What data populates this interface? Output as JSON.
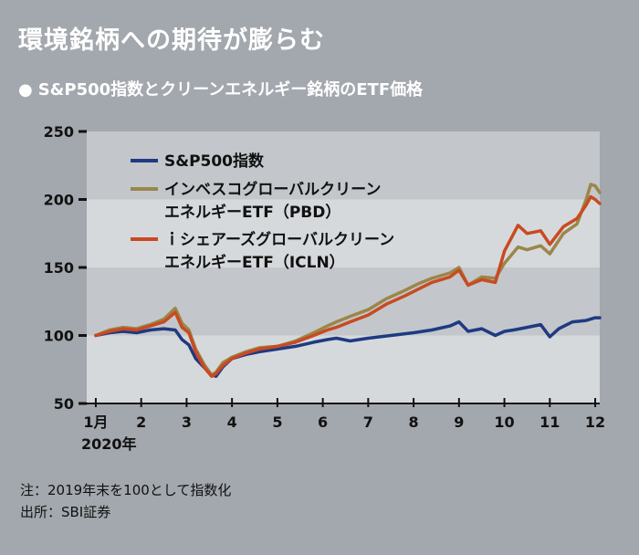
{
  "header": {
    "title": "環境銘柄への期待が膨らむ",
    "subtitle_bullet": "●",
    "subtitle": "S&P500指数とクリーンエネルギー銘柄のETF価格"
  },
  "notes": {
    "note1": "注：2019年末を100として指数化",
    "note2": "出所：SBI証券"
  },
  "chart_data": {
    "type": "line",
    "ylim": [
      50,
      250
    ],
    "yticks": [
      50,
      100,
      150,
      200,
      250
    ],
    "xlim": [
      0.8,
      12.1
    ],
    "xticks": [
      {
        "label": "1月",
        "value": 1
      },
      {
        "label": "2",
        "value": 2
      },
      {
        "label": "3",
        "value": 3
      },
      {
        "label": "4",
        "value": 4
      },
      {
        "label": "5",
        "value": 5
      },
      {
        "label": "6",
        "value": 6
      },
      {
        "label": "7",
        "value": 7
      },
      {
        "label": "8",
        "value": 8
      },
      {
        "label": "9",
        "value": 9
      },
      {
        "label": "10",
        "value": 10
      },
      {
        "label": "11",
        "value": 11
      },
      {
        "label": "12",
        "value": 12
      }
    ],
    "x_sub_label": "2020年",
    "bands": [
      [
        50,
        100,
        "light"
      ],
      [
        100,
        150,
        "dark"
      ],
      [
        150,
        200,
        "light"
      ],
      [
        200,
        250,
        "dark"
      ]
    ],
    "colors": {
      "band_light": "#d6d9dc",
      "band_dark": "#c3c7cb",
      "bg": "#a3a8ae"
    },
    "series": [
      {
        "name_lines": [
          "S&P500指数"
        ],
        "color": "#1f3a82",
        "x": [
          1.0,
          1.3,
          1.6,
          1.9,
          2.2,
          2.5,
          2.75,
          2.9,
          3.05,
          3.2,
          3.4,
          3.55,
          3.65,
          3.8,
          4.0,
          4.3,
          4.6,
          5.0,
          5.4,
          5.8,
          6.1,
          6.3,
          6.6,
          7.0,
          7.5,
          8.0,
          8.4,
          8.8,
          9.0,
          9.2,
          9.5,
          9.8,
          10.0,
          10.2,
          10.5,
          10.8,
          11.0,
          11.2,
          11.5,
          11.8,
          12.0,
          12.1
        ],
        "y": [
          100,
          102,
          103,
          102,
          104,
          105,
          104,
          97,
          93,
          83,
          76,
          71,
          70,
          77,
          83,
          86,
          88,
          90,
          92,
          95,
          97,
          98,
          96,
          98,
          100,
          102,
          104,
          107,
          110,
          103,
          105,
          100,
          103,
          104,
          106,
          108,
          99,
          105,
          110,
          111,
          113,
          113
        ]
      },
      {
        "name_lines": [
          "インベスコグローバルクリーン",
          "エネルギーETF（PBD）"
        ],
        "color": "#9b8649",
        "x": [
          1.0,
          1.3,
          1.6,
          1.9,
          2.2,
          2.5,
          2.75,
          2.9,
          3.05,
          3.2,
          3.4,
          3.55,
          3.65,
          3.8,
          4.0,
          4.3,
          4.6,
          5.0,
          5.4,
          5.8,
          6.1,
          6.3,
          6.6,
          7.0,
          7.4,
          7.8,
          8.1,
          8.4,
          8.8,
          9.0,
          9.2,
          9.5,
          9.8,
          10.0,
          10.3,
          10.5,
          10.8,
          11.0,
          11.3,
          11.6,
          11.8,
          11.9,
          12.0,
          12.1
        ],
        "y": [
          100,
          104,
          106,
          105,
          108,
          112,
          120,
          109,
          104,
          90,
          78,
          71,
          73,
          80,
          84,
          88,
          91,
          92,
          96,
          102,
          107,
          110,
          114,
          119,
          127,
          133,
          138,
          142,
          146,
          150,
          137,
          143,
          142,
          153,
          165,
          163,
          166,
          160,
          175,
          182,
          200,
          211,
          210,
          205
        ]
      },
      {
        "name_lines": [
          "ｉシェアーズグローバルクリーン",
          "エネルギーETF（ICLN）"
        ],
        "color": "#c94a22",
        "x": [
          1.0,
          1.3,
          1.6,
          1.9,
          2.2,
          2.5,
          2.75,
          2.9,
          3.05,
          3.2,
          3.4,
          3.55,
          3.65,
          3.8,
          4.0,
          4.3,
          4.6,
          5.0,
          5.4,
          5.8,
          6.1,
          6.3,
          6.6,
          7.0,
          7.4,
          7.8,
          8.1,
          8.4,
          8.8,
          9.0,
          9.2,
          9.5,
          9.8,
          10.0,
          10.3,
          10.5,
          10.8,
          11.0,
          11.3,
          11.6,
          11.8,
          11.9,
          12.0,
          12.1
        ],
        "y": [
          100,
          103,
          105,
          104,
          107,
          110,
          117,
          106,
          102,
          88,
          76,
          70,
          72,
          78,
          83,
          87,
          90,
          92,
          95,
          100,
          104,
          106,
          110,
          115,
          123,
          129,
          134,
          139,
          143,
          148,
          137,
          141,
          139,
          162,
          181,
          175,
          177,
          167,
          180,
          186,
          196,
          202,
          200,
          197
        ]
      }
    ]
  }
}
